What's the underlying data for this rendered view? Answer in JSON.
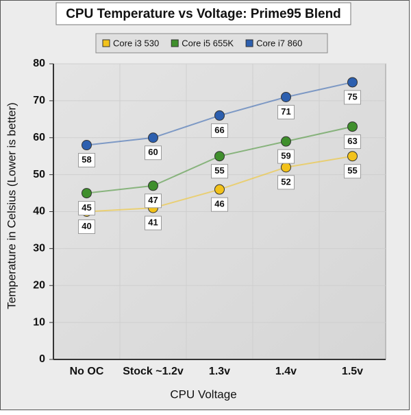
{
  "chart_data": {
    "type": "line",
    "title": "CPU Temperature vs Voltage: Prime95 Blend",
    "x_label": "CPU Voltage",
    "y_label": "Temperature in Celsius (Lower is better)",
    "categories": [
      "No OC",
      "Stock ~1.2v",
      "1.3v",
      "1.4v",
      "1.5v"
    ],
    "series": [
      {
        "name": "Core i3 530",
        "color": "#f2c21b",
        "values": [
          40,
          41,
          46,
          52,
          55
        ]
      },
      {
        "name": "Core i5 655K",
        "color": "#3f8f2c",
        "values": [
          45,
          47,
          55,
          59,
          63
        ]
      },
      {
        "name": "Core i7 860",
        "color": "#2c5faf",
        "values": [
          58,
          60,
          66,
          71,
          75
        ]
      }
    ],
    "ylim": [
      0,
      80
    ],
    "yticks": [
      0,
      10,
      20,
      30,
      40,
      50,
      60,
      70,
      80
    ],
    "grid": true
  }
}
